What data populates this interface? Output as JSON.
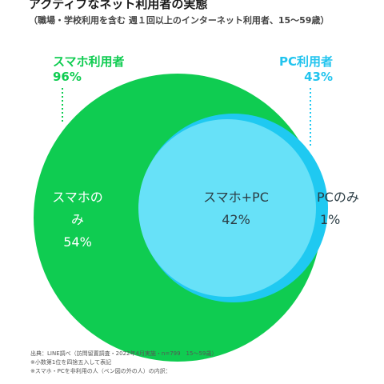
{
  "header": {
    "title": "アクティブなネット利用者の実態",
    "subtitle": "（職場・学校利用を含む 週１回以上のインターネット利用者、15〜59歳）"
  },
  "colors": {
    "smartphone": "#0fcc51",
    "pc": "#1fc9f1",
    "overlap": "#67e1f8",
    "dotted_left": "#0fcc51",
    "dotted_right": "#1fc9f1"
  },
  "chart_data": {
    "type": "venn",
    "sets": [
      {
        "name": "スマホ利用者",
        "value": "96%"
      },
      {
        "name": "PC利用者",
        "value": "43%"
      }
    ],
    "regions": [
      {
        "label": "スマホのみ",
        "value": "54%"
      },
      {
        "label": "スマホ+PC",
        "value": "42%"
      },
      {
        "label": "PCのみ",
        "value": "1%"
      }
    ]
  },
  "footnotes": [
    "出典：LINE調べ（訪問留置調査・2022年4月実施・n=799　15〜59歳）",
    "※小数第1位を四捨五入して表記",
    "※スマホ・PCを非利用の人（ベン図の外の人）の内訳："
  ]
}
